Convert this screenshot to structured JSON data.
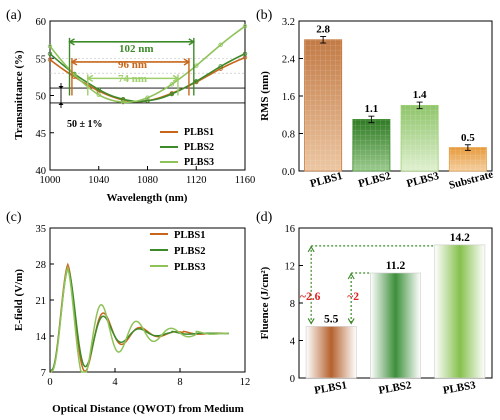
{
  "chart_data": [
    {
      "panel": "(a)",
      "type": "line",
      "xlabel": "Wavelength (nm)",
      "ylabel": "Transmittance (%)",
      "xlim": [
        1000,
        1160
      ],
      "ylim": [
        40,
        60
      ],
      "xticks": [
        "1000",
        "1040",
        "1080",
        "1120",
        "1160"
      ],
      "yticks": [
        "40",
        "45",
        "50",
        "55",
        "60"
      ],
      "series": [
        {
          "name": "PLBS1",
          "color": "#c7661a",
          "x": [
            1000,
            1010,
            1020,
            1030,
            1040,
            1050,
            1060,
            1070,
            1080,
            1090,
            1100,
            1110,
            1120,
            1130,
            1140,
            1150,
            1160
          ],
          "y": [
            54.8,
            53.6,
            52.5,
            51.5,
            50.6,
            49.9,
            49.4,
            49.2,
            49.3,
            49.7,
            50.3,
            51.0,
            51.8,
            52.7,
            53.6,
            54.4,
            55.1
          ]
        },
        {
          "name": "PLBS2",
          "color": "#3d8a2a",
          "x": [
            1000,
            1010,
            1020,
            1030,
            1040,
            1050,
            1060,
            1070,
            1080,
            1090,
            1100,
            1110,
            1120,
            1130,
            1140,
            1150,
            1160
          ],
          "y": [
            55.6,
            54.2,
            52.9,
            51.8,
            50.8,
            50.0,
            49.5,
            49.2,
            49.3,
            49.6,
            50.2,
            51.0,
            51.9,
            52.9,
            53.9,
            54.8,
            55.6
          ]
        },
        {
          "name": "PLBS3",
          "color": "#8fc35a",
          "x": [
            1000,
            1010,
            1020,
            1030,
            1040,
            1050,
            1060,
            1070,
            1080,
            1090,
            1100,
            1110,
            1120,
            1130,
            1140,
            1150,
            1160
          ],
          "y": [
            56.6,
            54.6,
            52.8,
            51.3,
            50.1,
            49.4,
            49.1,
            49.2,
            49.7,
            50.5,
            51.5,
            52.7,
            54.0,
            55.4,
            56.8,
            58.1,
            59.3
          ]
        }
      ],
      "annotations": {
        "bandwidths": [
          {
            "label": "102 nm",
            "color": "#3d8a2a",
            "x1": 1016,
            "x2": 1118,
            "y": 57.2
          },
          {
            "label": "96 nm",
            "color": "#c7661a",
            "x1": 1018,
            "x2": 1114,
            "y": 54.5
          },
          {
            "label": "74 nm",
            "color": "#9fcf6a",
            "x1": 1031,
            "x2": 1105,
            "y": 52.3
          }
        ],
        "hlines": [
          51,
          49
        ],
        "range_label": "50 ± 1%"
      }
    },
    {
      "panel": "(b)",
      "type": "bar",
      "ylabel": "RMS (nm)",
      "ylim": [
        0,
        3.2
      ],
      "yticks": [
        "0.0",
        "0.8",
        "1.6",
        "2.4",
        "3.2"
      ],
      "categories": [
        "PLBS1",
        "PLBS2",
        "PLBS3",
        "Substrate"
      ],
      "values": [
        2.8,
        1.1,
        1.4,
        0.5
      ],
      "value_labels": [
        "2.8",
        "1.1",
        "1.4",
        "0.5"
      ],
      "errors": [
        0.07,
        0.07,
        0.07,
        0.06
      ],
      "colors": [
        "#c7763a",
        "#3f8f2f",
        "#9fd074",
        "#e8a046"
      ]
    },
    {
      "panel": "(c)",
      "type": "line",
      "xlabel": "Optical Distance (QWOT) from Medium",
      "ylabel": "E-field (V/m)",
      "xlim": [
        0,
        12
      ],
      "ylim": [
        7,
        35
      ],
      "xticks": [
        "0",
        "4",
        "8",
        "12"
      ],
      "yticks": [
        "7",
        "14",
        "21",
        "28",
        "35"
      ],
      "series": [
        {
          "name": "PLBS1",
          "color": "#c7661a"
        },
        {
          "name": "PLBS2",
          "color": "#3d8a2a"
        },
        {
          "name": "PLBS3",
          "color": "#8fc35a"
        }
      ]
    },
    {
      "panel": "(d)",
      "type": "bar",
      "ylabel": "Fluence (J/cm²)",
      "ylim": [
        0,
        16
      ],
      "yticks": [
        "0",
        "4",
        "8",
        "12",
        "16"
      ],
      "categories": [
        "PLBS1",
        "PLBS2",
        "PLBS3"
      ],
      "values": [
        5.5,
        11.2,
        14.2
      ],
      "value_labels": [
        "5.5",
        "11.2",
        "14.2"
      ],
      "colors": [
        "#b5612e",
        "#3d8f3a",
        "#86c04d"
      ],
      "annotations": [
        {
          "label": "~2.6",
          "color": "#e02020"
        },
        {
          "label": "~2",
          "color": "#e02020"
        }
      ]
    }
  ],
  "panel_labels": [
    "(a)",
    "(b)",
    "(c)",
    "(d)"
  ]
}
